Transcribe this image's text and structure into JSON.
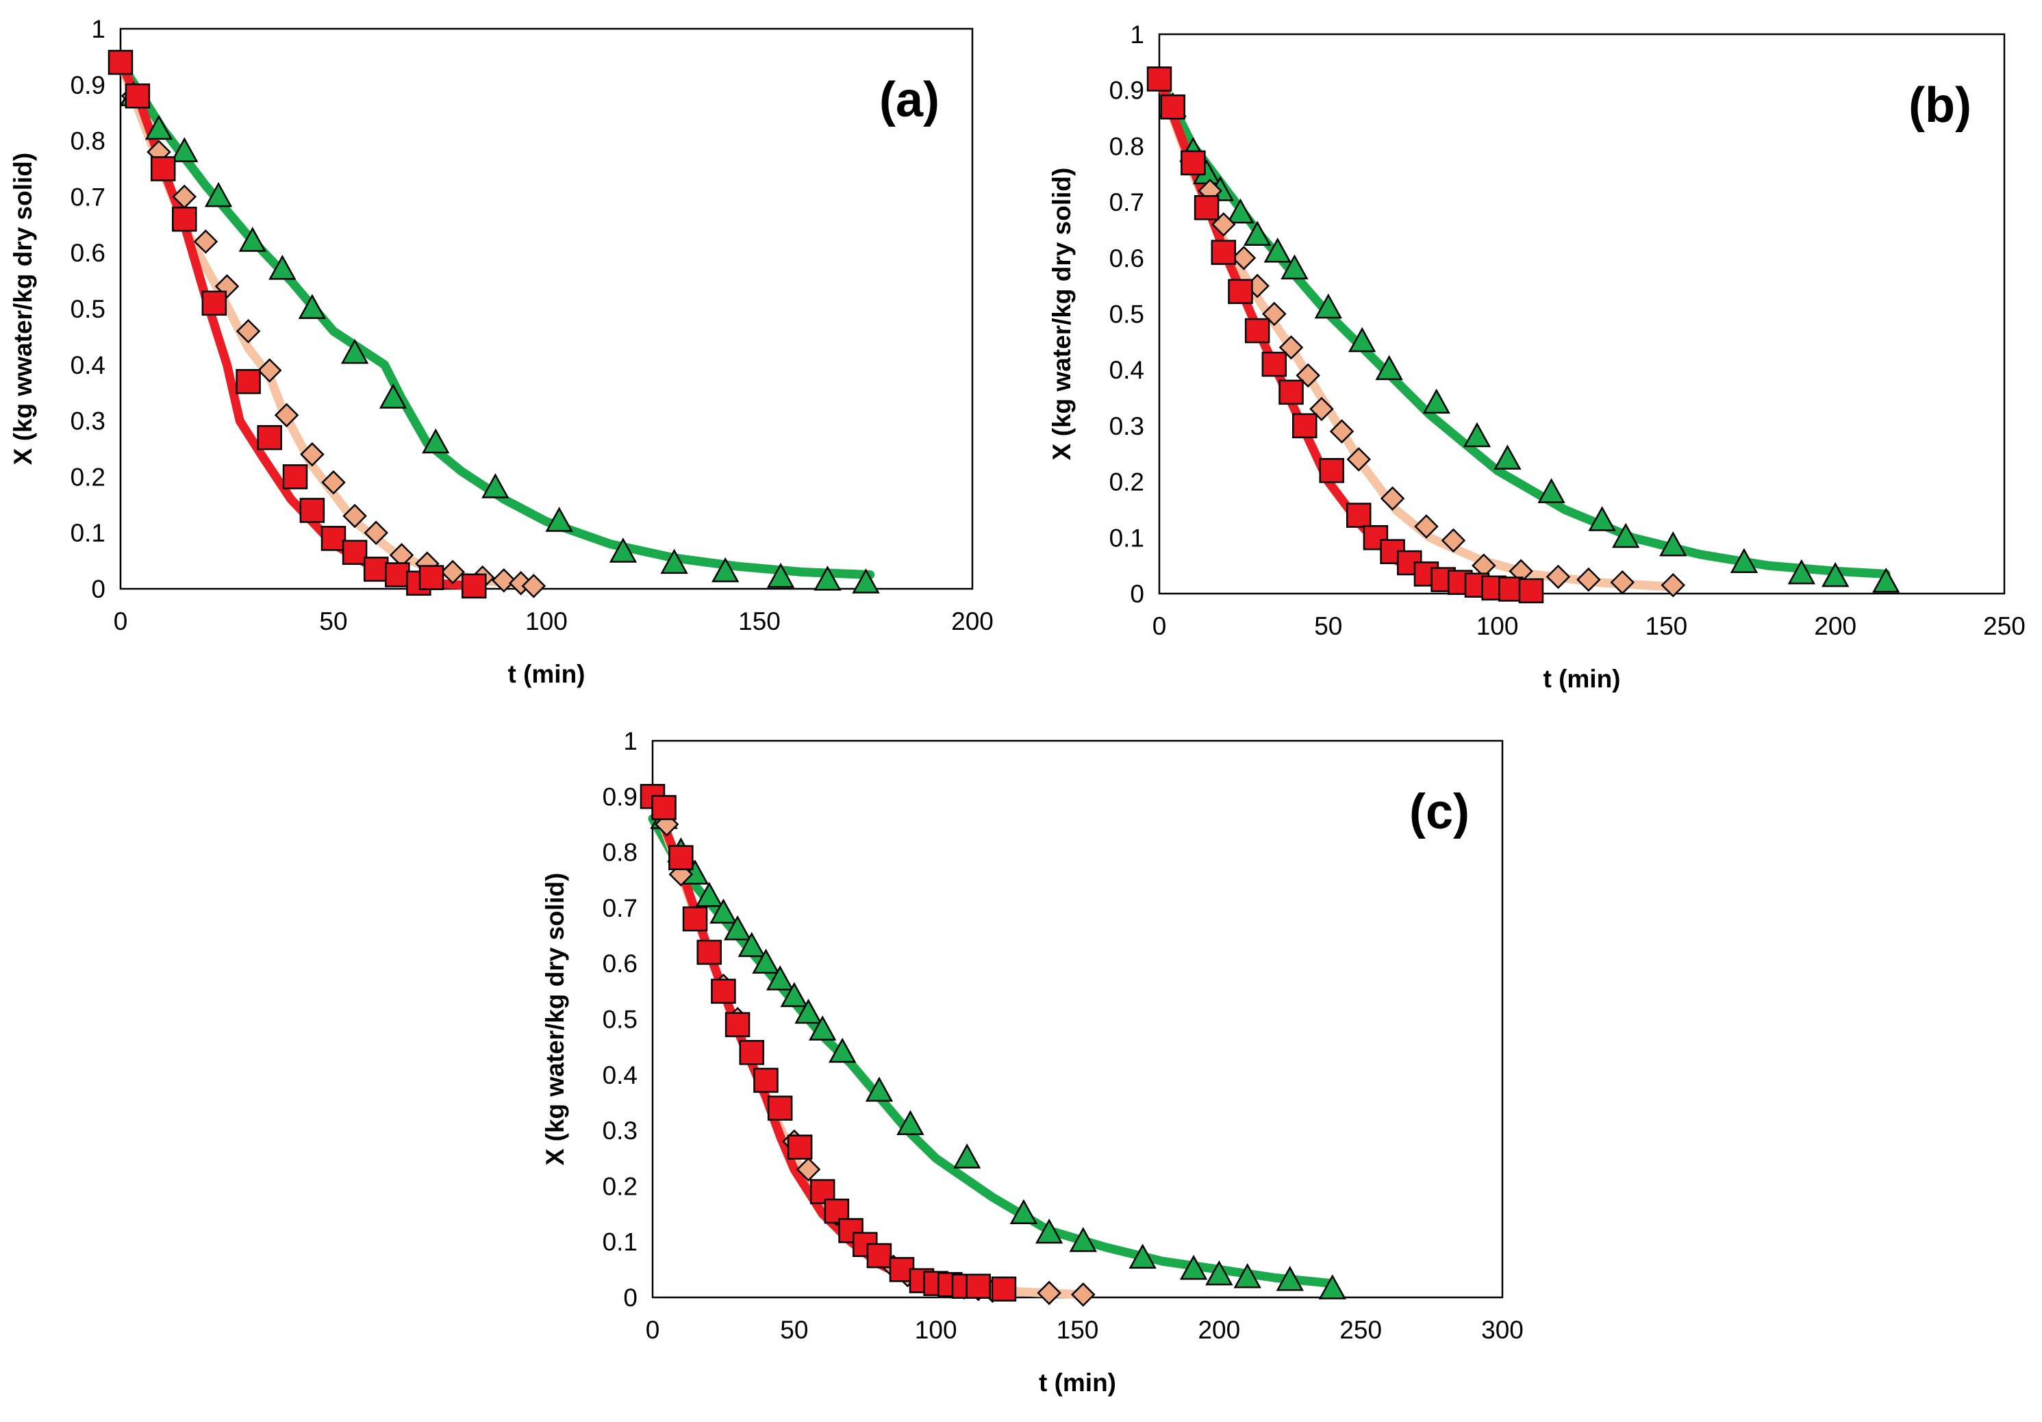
{
  "figure": {
    "panel_count": 3,
    "colors": {
      "green": "#1aaa4b",
      "peach": "#f7c4a4",
      "red": "#ec1c24",
      "diamond": "#f0a882",
      "square": "#e8161e",
      "edge": "#000000"
    }
  },
  "chart_data": [
    {
      "id": "a",
      "type": "line",
      "panel_label": "(a)",
      "xlabel": "t (min)",
      "ylabel": "X (kg wwater/kg dry solid)",
      "xlim": [
        0,
        200
      ],
      "ylim": [
        0,
        1
      ],
      "x_ticks": [
        0,
        50,
        100,
        150,
        200
      ],
      "y_ticks": [
        0,
        0.1,
        0.2,
        0.3,
        0.4,
        0.5,
        0.6,
        0.7,
        0.8,
        0.9,
        1
      ],
      "x_tick_labels": [
        "0",
        "50",
        "100",
        "150",
        "200"
      ],
      "y_tick_labels": [
        "0",
        "0.1",
        "0.2",
        "0.3",
        "0.4",
        "0.5",
        "0.6",
        "0.7",
        "0.8",
        "0.9",
        "1"
      ],
      "lines": [
        {
          "name": "green-fit",
          "color": "#1aaa4b",
          "x": [
            0,
            10,
            20,
            30,
            40,
            50,
            60,
            62,
            66,
            72,
            80,
            90,
            100,
            115,
            130,
            145,
            160,
            176
          ],
          "y": [
            0.94,
            0.82,
            0.72,
            0.63,
            0.55,
            0.46,
            0.41,
            0.4,
            0.34,
            0.26,
            0.21,
            0.16,
            0.12,
            0.08,
            0.055,
            0.04,
            0.03,
            0.025
          ]
        },
        {
          "name": "peach-fit",
          "color": "#f7c4a4",
          "x": [
            0,
            8,
            16,
            24,
            30,
            35,
            38,
            45,
            55,
            65,
            75,
            85,
            97
          ],
          "y": [
            0.94,
            0.78,
            0.63,
            0.52,
            0.43,
            0.38,
            0.32,
            0.22,
            0.12,
            0.06,
            0.03,
            0.015,
            0.005
          ]
        },
        {
          "name": "red-fit",
          "color": "#ec1c24",
          "x": [
            0,
            5,
            10,
            15,
            20,
            25,
            28,
            33,
            40,
            50,
            60,
            70,
            83
          ],
          "y": [
            0.94,
            0.86,
            0.75,
            0.65,
            0.52,
            0.4,
            0.3,
            0.24,
            0.16,
            0.08,
            0.035,
            0.012,
            0.005
          ]
        }
      ],
      "markers": [
        {
          "name": "triangle-series",
          "shape": "triangle",
          "color": "#1aaa4b",
          "x": [
            3,
            9,
            15,
            23,
            31,
            38,
            45,
            55,
            64,
            74,
            88,
            103,
            118,
            130,
            142,
            155,
            166,
            175
          ],
          "y": [
            0.88,
            0.82,
            0.78,
            0.7,
            0.62,
            0.57,
            0.5,
            0.42,
            0.34,
            0.26,
            0.18,
            0.12,
            0.065,
            0.045,
            0.03,
            0.02,
            0.015,
            0.01
          ]
        },
        {
          "name": "diamond-series",
          "shape": "diamond",
          "color": "#f0a882",
          "x": [
            3,
            9,
            15,
            20,
            25,
            30,
            35,
            39,
            45,
            50,
            55,
            60,
            66,
            72,
            78,
            85,
            90,
            94,
            97
          ],
          "y": [
            0.88,
            0.78,
            0.7,
            0.62,
            0.54,
            0.46,
            0.39,
            0.31,
            0.24,
            0.19,
            0.13,
            0.1,
            0.06,
            0.045,
            0.03,
            0.02,
            0.015,
            0.01,
            0.005
          ]
        },
        {
          "name": "square-series",
          "shape": "square",
          "color": "#e8161e",
          "x": [
            0,
            4,
            10,
            15,
            22,
            30,
            35,
            41,
            45,
            50,
            55,
            60,
            65,
            70,
            73,
            83
          ],
          "y": [
            0.94,
            0.88,
            0.75,
            0.66,
            0.51,
            0.37,
            0.27,
            0.2,
            0.14,
            0.09,
            0.065,
            0.035,
            0.025,
            0.01,
            0.02,
            0.005
          ]
        }
      ]
    },
    {
      "id": "b",
      "type": "line",
      "panel_label": "(b)",
      "xlabel": "t (min)",
      "ylabel": "X (kg water/kg dry solid)",
      "xlim": [
        0,
        250
      ],
      "ylim": [
        0,
        1
      ],
      "x_ticks": [
        0,
        50,
        100,
        150,
        200,
        250
      ],
      "y_ticks": [
        0,
        0.1,
        0.2,
        0.3,
        0.4,
        0.5,
        0.6,
        0.7,
        0.8,
        0.9,
        1
      ],
      "x_tick_labels": [
        "0",
        "50",
        "100",
        "150",
        "200",
        "250"
      ],
      "y_tick_labels": [
        "0",
        "0.1",
        "0.2",
        "0.3",
        "0.4",
        "0.5",
        "0.6",
        "0.7",
        "0.8",
        "0.9",
        "1"
      ],
      "lines": [
        {
          "name": "green-fit",
          "color": "#1aaa4b",
          "x": [
            0,
            10,
            20,
            30,
            40,
            50,
            60,
            70,
            80,
            90,
            100,
            120,
            140,
            160,
            180,
            200,
            215
          ],
          "y": [
            0.92,
            0.8,
            0.72,
            0.64,
            0.57,
            0.5,
            0.44,
            0.38,
            0.32,
            0.27,
            0.22,
            0.15,
            0.1,
            0.07,
            0.05,
            0.04,
            0.035
          ]
        },
        {
          "name": "peach-fit",
          "color": "#f7c4a4",
          "x": [
            0,
            10,
            20,
            30,
            40,
            50,
            60,
            70,
            80,
            95,
            110,
            130,
            152
          ],
          "y": [
            0.92,
            0.75,
            0.62,
            0.52,
            0.43,
            0.33,
            0.23,
            0.15,
            0.1,
            0.06,
            0.035,
            0.02,
            0.012
          ]
        },
        {
          "name": "red-fit",
          "color": "#ec1c24",
          "x": [
            0,
            10,
            20,
            30,
            40,
            50,
            60,
            70,
            80,
            90,
            100,
            110
          ],
          "y": [
            0.92,
            0.76,
            0.6,
            0.46,
            0.33,
            0.2,
            0.12,
            0.06,
            0.03,
            0.015,
            0.008,
            0.005
          ]
        }
      ],
      "markers": [
        {
          "name": "triangle-series",
          "shape": "triangle",
          "color": "#1aaa4b",
          "x": [
            4,
            10,
            14,
            18,
            24,
            29,
            35,
            40,
            50,
            60,
            68,
            82,
            94,
            103,
            116,
            131,
            138,
            152,
            173,
            190,
            200,
            215
          ],
          "y": [
            0.87,
            0.79,
            0.75,
            0.72,
            0.68,
            0.64,
            0.61,
            0.58,
            0.51,
            0.45,
            0.4,
            0.34,
            0.28,
            0.24,
            0.18,
            0.13,
            0.1,
            0.085,
            0.055,
            0.035,
            0.03,
            0.02
          ]
        },
        {
          "name": "diamond-series",
          "shape": "diamond",
          "color": "#f0a882",
          "x": [
            10,
            15,
            19,
            25,
            29,
            34,
            39,
            44,
            48,
            54,
            59,
            69,
            79,
            87,
            96,
            107,
            118,
            127,
            137,
            152
          ],
          "y": [
            0.77,
            0.72,
            0.66,
            0.6,
            0.55,
            0.5,
            0.44,
            0.39,
            0.33,
            0.29,
            0.24,
            0.17,
            0.12,
            0.095,
            0.05,
            0.04,
            0.03,
            0.025,
            0.02,
            0.015
          ]
        },
        {
          "name": "square-series",
          "shape": "square",
          "color": "#e8161e",
          "x": [
            0,
            4,
            10,
            14,
            19,
            24,
            29,
            34,
            39,
            43,
            51,
            59,
            64,
            69,
            74,
            79,
            84,
            89,
            94,
            99,
            104,
            110
          ],
          "y": [
            0.92,
            0.87,
            0.77,
            0.69,
            0.61,
            0.54,
            0.47,
            0.41,
            0.36,
            0.3,
            0.22,
            0.14,
            0.1,
            0.075,
            0.055,
            0.035,
            0.025,
            0.02,
            0.015,
            0.01,
            0.008,
            0.005
          ]
        }
      ]
    },
    {
      "id": "c",
      "type": "line",
      "panel_label": "(c)",
      "xlabel": "t (min)",
      "ylabel": "X (kg water/kg dry solid)",
      "xlim": [
        0,
        300
      ],
      "ylim": [
        0,
        1
      ],
      "x_ticks": [
        0,
        50,
        100,
        150,
        200,
        250,
        300
      ],
      "y_ticks": [
        0,
        0.1,
        0.2,
        0.3,
        0.4,
        0.5,
        0.6,
        0.7,
        0.8,
        0.9,
        1
      ],
      "x_tick_labels": [
        "0",
        "50",
        "100",
        "150",
        "200",
        "250",
        "300"
      ],
      "y_tick_labels": [
        "0",
        "0.1",
        "0.2",
        "0.3",
        "0.4",
        "0.5",
        "0.6",
        "0.7",
        "0.8",
        "0.9",
        "1"
      ],
      "lines": [
        {
          "name": "green-fit",
          "color": "#1aaa4b",
          "x": [
            0,
            10,
            20,
            30,
            40,
            50,
            60,
            70,
            80,
            90,
            100,
            120,
            140,
            160,
            180,
            200,
            220,
            240
          ],
          "y": [
            0.86,
            0.77,
            0.71,
            0.65,
            0.59,
            0.53,
            0.47,
            0.42,
            0.36,
            0.3,
            0.25,
            0.18,
            0.12,
            0.09,
            0.065,
            0.05,
            0.035,
            0.025
          ]
        },
        {
          "name": "peach-fit",
          "color": "#f7c4a4",
          "x": [
            0,
            10,
            20,
            30,
            40,
            50,
            60,
            70,
            80,
            95,
            110,
            130,
            152
          ],
          "y": [
            0.9,
            0.76,
            0.62,
            0.48,
            0.36,
            0.25,
            0.17,
            0.11,
            0.07,
            0.04,
            0.02,
            0.01,
            0.005
          ]
        },
        {
          "name": "red-fit",
          "color": "#ec1c24",
          "x": [
            0,
            10,
            20,
            30,
            40,
            45,
            50,
            60,
            70,
            80,
            90,
            100,
            110,
            124
          ],
          "y": [
            0.9,
            0.77,
            0.62,
            0.48,
            0.36,
            0.29,
            0.23,
            0.15,
            0.1,
            0.06,
            0.035,
            0.02,
            0.012,
            0.008
          ]
        }
      ],
      "markers": [
        {
          "name": "triangle-series",
          "shape": "triangle",
          "color": "#1aaa4b",
          "x": [
            4,
            10,
            15,
            20,
            25,
            30,
            35,
            40,
            45,
            50,
            55,
            60,
            67,
            80,
            91,
            111,
            131,
            140,
            152,
            173,
            191,
            200,
            210,
            225,
            240
          ],
          "y": [
            0.86,
            0.8,
            0.76,
            0.72,
            0.69,
            0.66,
            0.63,
            0.6,
            0.57,
            0.54,
            0.51,
            0.48,
            0.44,
            0.37,
            0.31,
            0.25,
            0.15,
            0.115,
            0.1,
            0.07,
            0.05,
            0.04,
            0.035,
            0.03,
            0.015
          ]
        },
        {
          "name": "diamond-series",
          "shape": "diamond",
          "color": "#f0a882",
          "x": [
            5,
            10,
            15,
            20,
            25,
            30,
            35,
            40,
            45,
            50,
            55,
            60,
            65,
            70,
            75,
            80,
            85,
            90,
            95,
            100,
            105,
            110,
            115,
            120,
            140,
            152
          ],
          "y": [
            0.85,
            0.76,
            0.68,
            0.62,
            0.56,
            0.5,
            0.44,
            0.39,
            0.34,
            0.28,
            0.23,
            0.19,
            0.15,
            0.12,
            0.095,
            0.075,
            0.055,
            0.04,
            0.03,
            0.025,
            0.02,
            0.018,
            0.015,
            0.012,
            0.008,
            0.005
          ]
        },
        {
          "name": "square-series",
          "shape": "square",
          "color": "#e8161e",
          "x": [
            0,
            4,
            10,
            15,
            20,
            25,
            30,
            35,
            40,
            45,
            52,
            60,
            65,
            70,
            75,
            80,
            88,
            95,
            100,
            105,
            110,
            115,
            124
          ],
          "y": [
            0.9,
            0.88,
            0.79,
            0.68,
            0.62,
            0.55,
            0.49,
            0.44,
            0.39,
            0.34,
            0.27,
            0.19,
            0.155,
            0.12,
            0.095,
            0.075,
            0.05,
            0.03,
            0.025,
            0.023,
            0.02,
            0.02,
            0.015
          ]
        }
      ]
    }
  ]
}
